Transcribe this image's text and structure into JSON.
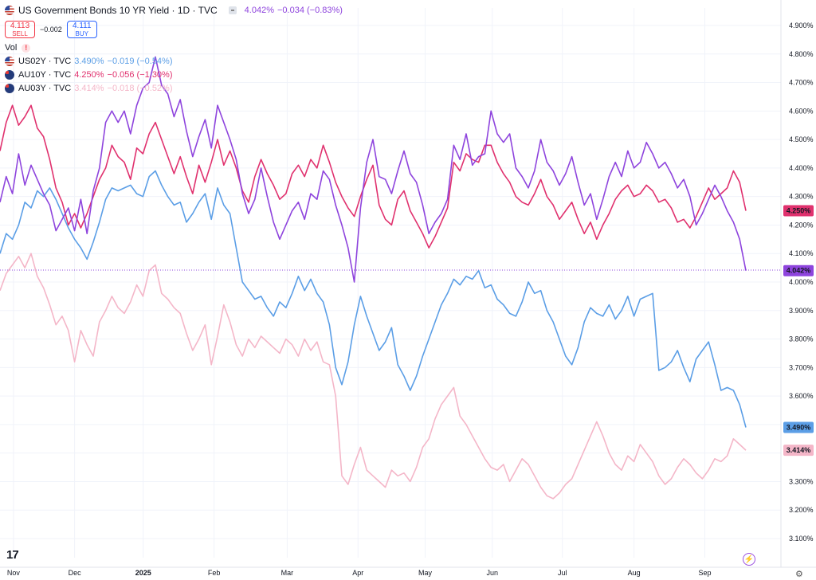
{
  "header": {
    "title": "US Government Bonds 10 YR Yield · 1D · TVC",
    "price": "4.042%",
    "change": "−0.034 (−0.83%)",
    "sell_price": "4.113",
    "sell_label": "SELL",
    "spread": "−0.002",
    "buy_price": "4.111",
    "buy_label": "BUY",
    "vol_label": "Vol",
    "vol_warning": "!"
  },
  "compare": [
    {
      "symbol": "US02Y · TVC",
      "value": "3.490%",
      "change": "−0.019 (−0.54%)",
      "color": "#5b9ee6",
      "flag": "us"
    },
    {
      "symbol": "AU10Y · TVC",
      "value": "4.250%",
      "change": "−0.056 (−1.30%)",
      "color": "#e0316e",
      "flag": "au"
    },
    {
      "symbol": "AU03Y · TVC",
      "value": "3.414%",
      "change": "−0.018 (−0.52%)",
      "color": "#f4b6c8",
      "flag": "au"
    }
  ],
  "branding": {
    "logo": "17"
  },
  "chart_data": {
    "type": "line",
    "ylim": [
      3.1,
      4.9
    ],
    "y_ticks": [
      "4.900%",
      "4.800%",
      "4.700%",
      "4.600%",
      "4.500%",
      "4.400%",
      "4.300%",
      "4.200%",
      "4.100%",
      "4.000%",
      "3.900%",
      "3.800%",
      "3.700%",
      "3.600%",
      "3.500%",
      "3.400%",
      "3.300%",
      "3.200%",
      "3.100%"
    ],
    "x_labels": [
      "Nov",
      "Dec",
      "2025",
      "Feb",
      "Mar",
      "Apr",
      "May",
      "Jun",
      "Jul",
      "Aug",
      "Sep"
    ],
    "x_label_positions": [
      0.018,
      0.1,
      0.192,
      0.287,
      0.385,
      0.48,
      0.57,
      0.66,
      0.754,
      0.85,
      0.945
    ],
    "x_bold_labels": [
      "2025"
    ],
    "grid": true,
    "price_line": 4.042,
    "series": [
      {
        "name": "US10Y",
        "color": "#8e44dd",
        "last_label": "4.042%",
        "values": [
          4.28,
          4.37,
          4.31,
          4.45,
          4.34,
          4.41,
          4.36,
          4.31,
          4.27,
          4.18,
          4.22,
          4.26,
          4.18,
          4.29,
          4.17,
          4.32,
          4.4,
          4.56,
          4.6,
          4.56,
          4.6,
          4.52,
          4.62,
          4.68,
          4.7,
          4.79,
          4.69,
          4.66,
          4.58,
          4.64,
          4.53,
          4.44,
          4.51,
          4.57,
          4.47,
          4.62,
          4.56,
          4.5,
          4.43,
          4.31,
          4.24,
          4.29,
          4.4,
          4.3,
          4.21,
          4.15,
          4.2,
          4.25,
          4.28,
          4.22,
          4.31,
          4.29,
          4.39,
          4.36,
          4.27,
          4.2,
          4.12,
          4.0,
          4.26,
          4.42,
          4.5,
          4.37,
          4.36,
          4.31,
          4.39,
          4.46,
          4.38,
          4.35,
          4.27,
          4.17,
          4.21,
          4.24,
          4.29,
          4.48,
          4.43,
          4.52,
          4.41,
          4.44,
          4.45,
          4.6,
          4.52,
          4.49,
          4.52,
          4.4,
          4.37,
          4.33,
          4.39,
          4.5,
          4.42,
          4.39,
          4.34,
          4.38,
          4.44,
          4.35,
          4.27,
          4.31,
          4.22,
          4.29,
          4.37,
          4.42,
          4.37,
          4.46,
          4.4,
          4.42,
          4.49,
          4.45,
          4.4,
          4.42,
          4.38,
          4.33,
          4.36,
          4.3,
          4.2,
          4.24,
          4.29,
          4.34,
          4.3,
          4.25,
          4.21,
          4.15,
          4.04
        ]
      },
      {
        "name": "AU10Y",
        "color": "#e0316e",
        "last_label": "4.250%",
        "values": [
          4.46,
          4.56,
          4.62,
          4.55,
          4.58,
          4.62,
          4.54,
          4.51,
          4.43,
          4.33,
          4.28,
          4.2,
          4.24,
          4.19,
          4.24,
          4.3,
          4.36,
          4.4,
          4.48,
          4.44,
          4.42,
          4.36,
          4.47,
          4.45,
          4.52,
          4.56,
          4.5,
          4.44,
          4.38,
          4.44,
          4.37,
          4.31,
          4.41,
          4.35,
          4.42,
          4.5,
          4.41,
          4.46,
          4.4,
          4.32,
          4.28,
          4.37,
          4.43,
          4.38,
          4.34,
          4.29,
          4.31,
          4.38,
          4.41,
          4.37,
          4.43,
          4.4,
          4.48,
          4.42,
          4.35,
          4.3,
          4.26,
          4.23,
          4.3,
          4.36,
          4.41,
          4.27,
          4.22,
          4.2,
          4.29,
          4.32,
          4.25,
          4.21,
          4.17,
          4.12,
          4.16,
          4.21,
          4.26,
          4.42,
          4.39,
          4.45,
          4.43,
          4.42,
          4.48,
          4.48,
          4.42,
          4.38,
          4.35,
          4.3,
          4.28,
          4.27,
          4.31,
          4.36,
          4.3,
          4.27,
          4.22,
          4.25,
          4.28,
          4.22,
          4.17,
          4.21,
          4.15,
          4.2,
          4.24,
          4.29,
          4.32,
          4.34,
          4.3,
          4.31,
          4.34,
          4.32,
          4.28,
          4.29,
          4.26,
          4.21,
          4.22,
          4.19,
          4.23,
          4.28,
          4.33,
          4.29,
          4.31,
          4.33,
          4.39,
          4.35,
          4.25
        ]
      },
      {
        "name": "US02Y",
        "color": "#5b9ee6",
        "last_label": "3.490%",
        "values": [
          4.1,
          4.17,
          4.15,
          4.2,
          4.28,
          4.26,
          4.32,
          4.3,
          4.33,
          4.29,
          4.24,
          4.19,
          4.15,
          4.12,
          4.08,
          4.14,
          4.21,
          4.29,
          4.33,
          4.32,
          4.33,
          4.34,
          4.31,
          4.3,
          4.37,
          4.39,
          4.34,
          4.3,
          4.27,
          4.28,
          4.21,
          4.24,
          4.28,
          4.31,
          4.22,
          4.33,
          4.27,
          4.24,
          4.12,
          4.0,
          3.97,
          3.94,
          3.95,
          3.91,
          3.88,
          3.93,
          3.91,
          3.96,
          4.02,
          3.97,
          4.01,
          3.96,
          3.93,
          3.85,
          3.7,
          3.64,
          3.72,
          3.85,
          3.95,
          3.88,
          3.82,
          3.76,
          3.79,
          3.84,
          3.71,
          3.67,
          3.62,
          3.67,
          3.74,
          3.8,
          3.86,
          3.92,
          3.96,
          4.01,
          3.99,
          4.02,
          4.01,
          4.04,
          3.98,
          3.99,
          3.94,
          3.92,
          3.89,
          3.88,
          3.93,
          4.0,
          3.96,
          3.97,
          3.9,
          3.86,
          3.8,
          3.74,
          3.71,
          3.77,
          3.86,
          3.91,
          3.89,
          3.88,
          3.92,
          3.87,
          3.9,
          3.95,
          3.88,
          3.94,
          3.95,
          3.96,
          3.69,
          3.7,
          3.72,
          3.76,
          3.7,
          3.65,
          3.73,
          3.76,
          3.79,
          3.71,
          3.62,
          3.63,
          3.62,
          3.57,
          3.49
        ]
      },
      {
        "name": "AU03Y",
        "color": "#f4b6c8",
        "last_label": "3.414%",
        "values": [
          3.97,
          4.03,
          4.06,
          4.09,
          4.05,
          4.1,
          4.02,
          3.98,
          3.92,
          3.85,
          3.88,
          3.83,
          3.72,
          3.83,
          3.78,
          3.74,
          3.86,
          3.9,
          3.95,
          3.91,
          3.89,
          3.93,
          3.99,
          3.95,
          4.04,
          4.06,
          3.96,
          3.94,
          3.91,
          3.89,
          3.82,
          3.76,
          3.8,
          3.85,
          3.71,
          3.81,
          3.92,
          3.86,
          3.78,
          3.74,
          3.8,
          3.77,
          3.81,
          3.79,
          3.77,
          3.75,
          3.8,
          3.78,
          3.74,
          3.8,
          3.76,
          3.79,
          3.72,
          3.71,
          3.6,
          3.32,
          3.29,
          3.36,
          3.42,
          3.34,
          3.32,
          3.3,
          3.28,
          3.34,
          3.32,
          3.33,
          3.3,
          3.35,
          3.42,
          3.45,
          3.52,
          3.57,
          3.6,
          3.63,
          3.53,
          3.5,
          3.46,
          3.42,
          3.38,
          3.35,
          3.34,
          3.36,
          3.3,
          3.34,
          3.38,
          3.36,
          3.32,
          3.28,
          3.25,
          3.24,
          3.26,
          3.29,
          3.31,
          3.36,
          3.41,
          3.46,
          3.51,
          3.46,
          3.4,
          3.36,
          3.34,
          3.39,
          3.37,
          3.43,
          3.4,
          3.37,
          3.32,
          3.29,
          3.31,
          3.35,
          3.38,
          3.36,
          3.33,
          3.31,
          3.34,
          3.38,
          3.37,
          3.39,
          3.45,
          3.43,
          3.41
        ]
      }
    ]
  }
}
